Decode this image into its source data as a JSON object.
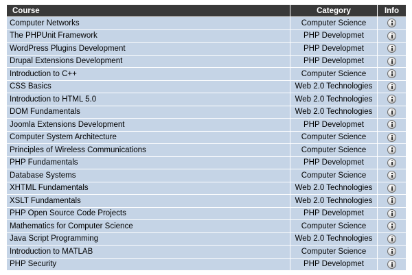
{
  "table": {
    "headers": {
      "course": "Course",
      "category": "Category",
      "info": "Info"
    },
    "info_icon": "info-icon",
    "rows": [
      {
        "course": "Computer Networks",
        "category": "Computer Science"
      },
      {
        "course": "The PHPUnit Framework",
        "category": "PHP Developmet"
      },
      {
        "course": "WordPress Plugins Development",
        "category": "PHP Developmet"
      },
      {
        "course": "Drupal Extensions Development",
        "category": "PHP Developmet"
      },
      {
        "course": "Introduction to C++",
        "category": "Computer Science"
      },
      {
        "course": "CSS Basics",
        "category": "Web 2.0 Technologies"
      },
      {
        "course": "Introduction to HTML 5.0",
        "category": "Web 2.0 Technologies"
      },
      {
        "course": "DOM Fundamentals",
        "category": "Web 2.0 Technologies"
      },
      {
        "course": "Joomla Extensions Development",
        "category": "PHP Developmet"
      },
      {
        "course": "Computer System Architecture",
        "category": "Computer Science"
      },
      {
        "course": "Principles of Wireless Communications",
        "category": "Computer Science"
      },
      {
        "course": "PHP Fundamentals",
        "category": "PHP Developmet"
      },
      {
        "course": "Database Systems",
        "category": "Computer Science"
      },
      {
        "course": "XHTML Fundamentals",
        "category": "Web 2.0 Technologies"
      },
      {
        "course": "XSLT Fundamentals",
        "category": "Web 2.0 Technologies"
      },
      {
        "course": "PHP Open Source Code Projects",
        "category": "PHP Developmet"
      },
      {
        "course": "Mathematics for Computer Science",
        "category": "Computer Science"
      },
      {
        "course": "Java Script Programming",
        "category": "Web 2.0 Technologies"
      },
      {
        "course": "Introduction to MATLAB",
        "category": "Computer Science"
      },
      {
        "course": "PHP Security",
        "category": "PHP Developmet"
      }
    ]
  }
}
